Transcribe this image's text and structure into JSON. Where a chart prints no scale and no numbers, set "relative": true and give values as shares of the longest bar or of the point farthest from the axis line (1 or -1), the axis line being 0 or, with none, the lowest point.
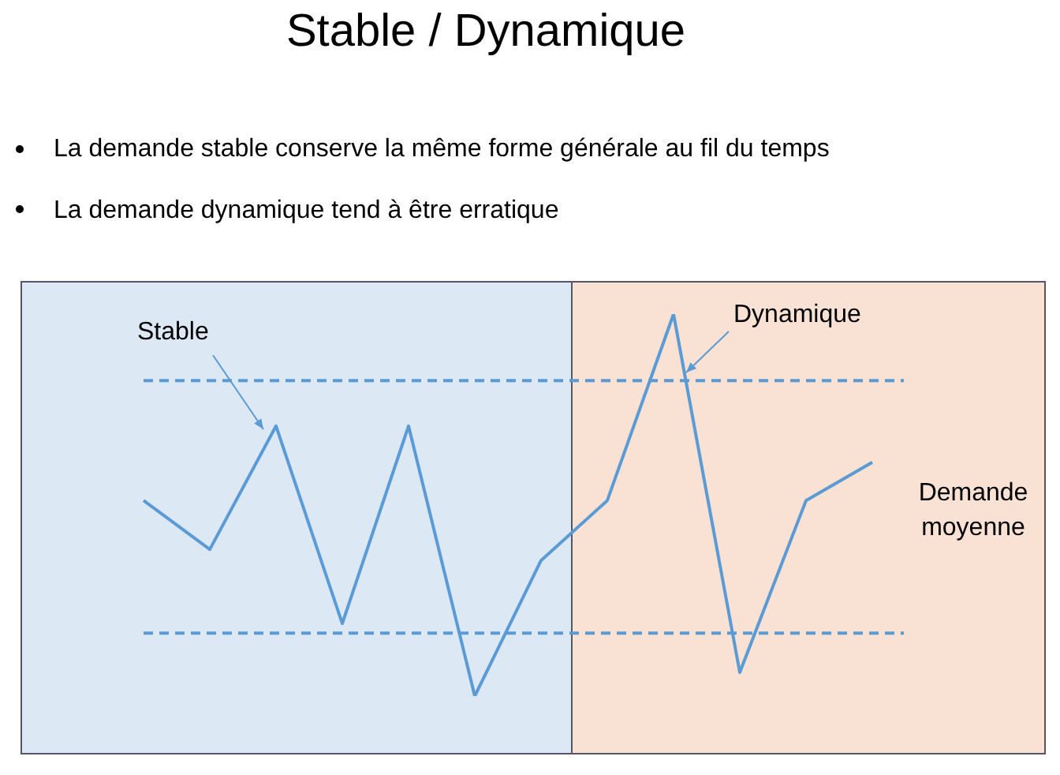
{
  "chart_data": {
    "type": "line",
    "title": "Stable / Dynamique",
    "relative": true,
    "categories": [
      null,
      null,
      null,
      null,
      null,
      null,
      null,
      null,
      null,
      null,
      null,
      null
    ],
    "series": [
      {
        "color": "#5b9bd5",
        "values": [
          0.512,
          0.384,
          0.707,
          0.19,
          0.707,
          0,
          0.355,
          0.512,
          1,
          0.062,
          0.512,
          0.612
        ]
      }
    ],
    "ref_lines": [
      {
        "axis": "y",
        "value": 0.826,
        "color": "#5b9bd5",
        "line_style": "dashed"
      },
      {
        "axis": "y",
        "value": 0.165,
        "color": "#5b9bd5",
        "line_style": "dashed"
      }
    ],
    "annotations": [
      "La demande stable conserve la même forme générale au fil du temps",
      "La demande dynamique tend à être erratique",
      "Stable",
      "Dynamique",
      "Demande moyenne"
    ],
    "marker": "none",
    "line_style": "solid",
    "legend": false
  }
}
